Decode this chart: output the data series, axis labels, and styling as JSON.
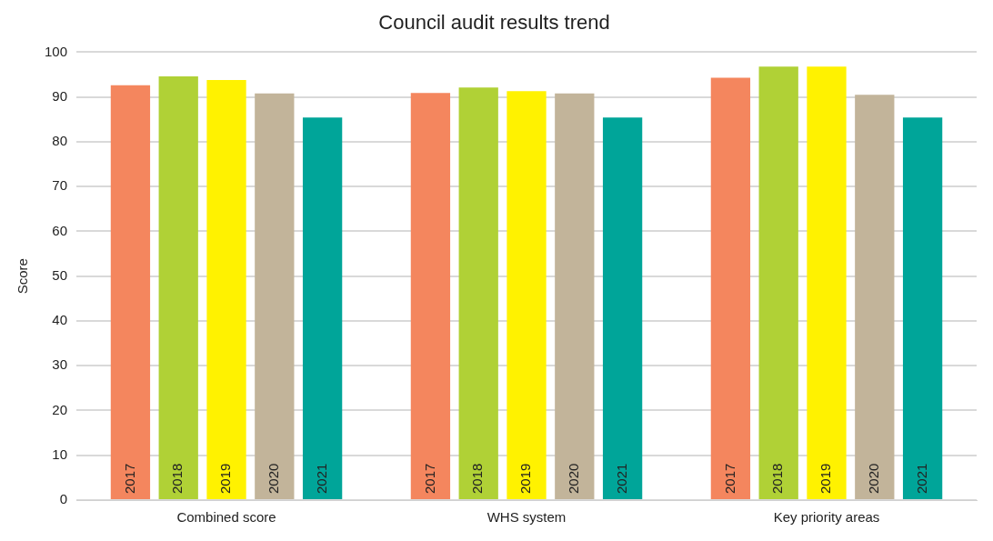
{
  "chart_data": {
    "type": "bar",
    "title": "Council audit results trend",
    "ylabel": "Score",
    "categories": [
      "Combined score",
      "WHS system",
      "Key priority areas"
    ],
    "series": [
      {
        "name": "2017",
        "color": "#f4865e",
        "values": [
          92.6,
          90.9,
          94.3
        ]
      },
      {
        "name": "2018",
        "color": "#b0d136",
        "values": [
          94.6,
          92.1,
          96.8
        ]
      },
      {
        "name": "2019",
        "color": "#fff200",
        "values": [
          93.8,
          91.3,
          96.8
        ]
      },
      {
        "name": "2020",
        "color": "#c2b49a",
        "values": [
          90.8,
          90.8,
          90.5
        ]
      },
      {
        "name": "2021",
        "color": "#00a599",
        "values": [
          85.4,
          85.4,
          85.4
        ]
      }
    ],
    "ylim": [
      0,
      100
    ],
    "yticks": [
      0,
      10,
      20,
      30,
      40,
      50,
      60,
      70,
      80,
      90,
      100
    ],
    "grid": "y",
    "legend": false
  }
}
